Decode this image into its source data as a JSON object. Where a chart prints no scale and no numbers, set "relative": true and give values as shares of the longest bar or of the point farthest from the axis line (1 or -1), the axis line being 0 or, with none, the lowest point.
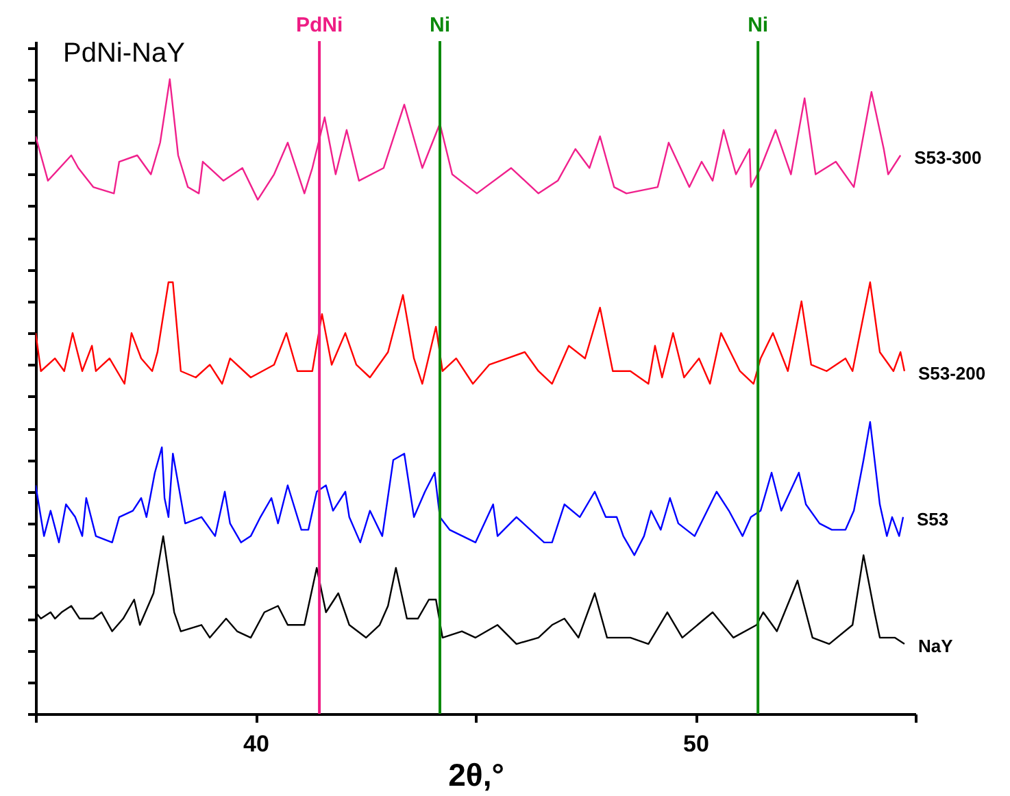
{
  "chart_data": {
    "type": "line",
    "title": "PdNi-NaY",
    "xlabel": "2θ,°",
    "relative": true,
    "legend": false,
    "grid": false,
    "xlim": [
      35,
      55
    ],
    "xticks": [
      {
        "value": 35,
        "label": null
      },
      40,
      {
        "value": 45,
        "label": null
      },
      50,
      {
        "value": 55,
        "label": null
      }
    ],
    "ref_lines": [
      {
        "axis": "x",
        "value": 41.45,
        "label": "PdNi",
        "color": "#ee1c84"
      },
      {
        "axis": "x",
        "value": 44.19,
        "label": "Ni",
        "color": "#0c8a0c"
      },
      {
        "axis": "x",
        "value": 51.42,
        "label": "Ni",
        "color": "#0c8a0c"
      }
    ],
    "series": [
      {
        "name": "S53-300",
        "color": "#f0208c",
        "x": [
          35.0,
          35.28,
          35.81,
          35.97,
          36.31,
          36.78,
          36.9,
          37.31,
          37.62,
          37.83,
          38.05,
          38.24,
          38.46,
          38.71,
          38.8,
          39.27,
          39.7,
          40.05,
          40.42,
          40.73,
          41.11,
          41.29,
          41.57,
          41.82,
          42.07,
          42.35,
          42.91,
          43.38,
          43.79,
          44.19,
          44.47,
          45.03,
          45.81,
          46.43,
          46.87,
          47.27,
          47.59,
          47.83,
          48.15,
          48.43,
          49.14,
          49.39,
          49.86,
          50.14,
          50.39,
          50.64,
          50.92,
          51.23,
          51.26,
          51.48,
          51.82,
          52.17,
          52.48,
          52.73,
          53.19,
          53.6,
          54.0,
          54.28,
          54.38,
          54.66
        ],
        "values": [
          0.91,
          0.84,
          0.88,
          0.86,
          0.83,
          0.82,
          0.87,
          0.88,
          0.85,
          0.9,
          1.0,
          0.88,
          0.83,
          0.82,
          0.87,
          0.84,
          0.86,
          0.81,
          0.85,
          0.9,
          0.82,
          0.86,
          0.94,
          0.85,
          0.92,
          0.84,
          0.86,
          0.96,
          0.86,
          0.93,
          0.85,
          0.82,
          0.86,
          0.82,
          0.84,
          0.89,
          0.86,
          0.91,
          0.83,
          0.82,
          0.83,
          0.9,
          0.83,
          0.87,
          0.84,
          0.92,
          0.85,
          0.89,
          0.83,
          0.86,
          0.92,
          0.85,
          0.97,
          0.85,
          0.87,
          0.83,
          0.98,
          0.89,
          0.85,
          0.88
        ]
      },
      {
        "name": "S53-200",
        "color": "#ff0000",
        "x": [
          35.0,
          35.12,
          35.44,
          35.65,
          35.84,
          36.06,
          36.28,
          36.37,
          36.68,
          37.02,
          37.18,
          37.4,
          37.65,
          37.77,
          38.02,
          38.12,
          38.3,
          38.64,
          38.96,
          39.24,
          39.42,
          39.89,
          40.42,
          40.7,
          40.95,
          41.29,
          41.51,
          41.73,
          42.04,
          42.29,
          42.6,
          43.01,
          43.35,
          43.6,
          43.79,
          44.1,
          44.25,
          44.56,
          44.94,
          45.31,
          45.72,
          46.12,
          46.43,
          46.74,
          47.12,
          47.49,
          47.83,
          48.12,
          48.52,
          48.93,
          49.08,
          49.24,
          49.49,
          49.74,
          50.08,
          50.33,
          50.58,
          51.01,
          51.32,
          51.48,
          51.76,
          52.1,
          52.41,
          52.63,
          52.98,
          53.41,
          53.57,
          53.97,
          54.19,
          54.5,
          54.66,
          54.75
        ],
        "values": [
          0.6,
          0.54,
          0.56,
          0.54,
          0.6,
          0.54,
          0.58,
          0.54,
          0.56,
          0.52,
          0.6,
          0.56,
          0.54,
          0.57,
          0.68,
          0.68,
          0.54,
          0.53,
          0.55,
          0.52,
          0.56,
          0.53,
          0.55,
          0.6,
          0.54,
          0.54,
          0.63,
          0.55,
          0.6,
          0.55,
          0.53,
          0.57,
          0.66,
          0.56,
          0.52,
          0.61,
          0.54,
          0.56,
          0.52,
          0.55,
          0.56,
          0.57,
          0.54,
          0.52,
          0.58,
          0.56,
          0.64,
          0.54,
          0.54,
          0.52,
          0.58,
          0.53,
          0.6,
          0.53,
          0.56,
          0.52,
          0.6,
          0.54,
          0.52,
          0.56,
          0.6,
          0.54,
          0.65,
          0.55,
          0.54,
          0.56,
          0.54,
          0.68,
          0.57,
          0.54,
          0.57,
          0.54
        ]
      },
      {
        "name": "S53",
        "color": "#0000ff",
        "x": [
          35.0,
          35.19,
          35.34,
          35.53,
          35.69,
          35.9,
          36.06,
          36.15,
          36.37,
          36.74,
          36.9,
          37.21,
          37.4,
          37.52,
          37.71,
          37.87,
          37.93,
          38.02,
          38.12,
          38.4,
          38.77,
          39.08,
          39.3,
          39.42,
          39.67,
          39.89,
          40.11,
          40.36,
          40.51,
          40.73,
          41.04,
          41.2,
          41.39,
          41.6,
          41.76,
          42.04,
          42.13,
          42.38,
          42.6,
          42.88,
          43.13,
          43.38,
          43.6,
          43.85,
          44.07,
          44.19,
          44.41,
          45.0,
          45.4,
          45.5,
          45.93,
          46.56,
          46.74,
          47.02,
          47.37,
          47.71,
          47.96,
          48.21,
          48.36,
          48.61,
          48.83,
          48.99,
          49.21,
          49.42,
          49.61,
          49.98,
          50.48,
          50.76,
          51.07,
          51.26,
          51.48,
          51.73,
          51.95,
          52.35,
          52.51,
          52.82,
          53.1,
          53.41,
          53.6,
          53.82,
          53.97,
          54.19,
          54.35,
          54.47,
          54.63,
          54.72
        ],
        "values": [
          0.36,
          0.28,
          0.32,
          0.27,
          0.33,
          0.31,
          0.28,
          0.34,
          0.28,
          0.27,
          0.31,
          0.32,
          0.34,
          0.31,
          0.38,
          0.42,
          0.34,
          0.31,
          0.41,
          0.3,
          0.31,
          0.28,
          0.35,
          0.3,
          0.27,
          0.28,
          0.31,
          0.34,
          0.3,
          0.36,
          0.29,
          0.29,
          0.35,
          0.36,
          0.32,
          0.35,
          0.31,
          0.27,
          0.32,
          0.28,
          0.4,
          0.41,
          0.31,
          0.35,
          0.38,
          0.31,
          0.29,
          0.27,
          0.33,
          0.28,
          0.31,
          0.27,
          0.27,
          0.33,
          0.31,
          0.35,
          0.31,
          0.31,
          0.28,
          0.25,
          0.28,
          0.32,
          0.29,
          0.34,
          0.3,
          0.28,
          0.35,
          0.32,
          0.28,
          0.31,
          0.32,
          0.38,
          0.32,
          0.38,
          0.33,
          0.3,
          0.29,
          0.29,
          0.32,
          0.4,
          0.46,
          0.33,
          0.28,
          0.31,
          0.28,
          0.31
        ]
      },
      {
        "name": "NaY",
        "color": "#000000",
        "x": [
          35.0,
          35.12,
          35.34,
          35.44,
          35.59,
          35.81,
          36.0,
          36.31,
          36.5,
          36.74,
          36.99,
          37.24,
          37.37,
          37.68,
          37.9,
          38.15,
          38.3,
          38.77,
          38.96,
          39.33,
          39.58,
          39.89,
          40.2,
          40.51,
          40.73,
          41.11,
          41.39,
          41.6,
          41.88,
          42.13,
          42.51,
          42.82,
          43.01,
          43.19,
          43.44,
          43.69,
          43.94,
          44.1,
          44.25,
          44.69,
          45.0,
          45.5,
          45.93,
          46.43,
          46.74,
          47.02,
          47.34,
          47.71,
          47.99,
          48.52,
          48.93,
          49.36,
          49.7,
          50.39,
          50.86,
          51.39,
          51.54,
          51.85,
          52.32,
          52.66,
          53.04,
          53.57,
          53.82,
          54.07,
          54.19,
          54.53,
          54.75
        ],
        "values": [
          0.16,
          0.15,
          0.16,
          0.15,
          0.16,
          0.17,
          0.15,
          0.15,
          0.16,
          0.13,
          0.15,
          0.18,
          0.14,
          0.19,
          0.28,
          0.16,
          0.13,
          0.14,
          0.12,
          0.15,
          0.13,
          0.12,
          0.16,
          0.17,
          0.14,
          0.14,
          0.23,
          0.16,
          0.19,
          0.14,
          0.12,
          0.14,
          0.17,
          0.23,
          0.15,
          0.15,
          0.18,
          0.18,
          0.12,
          0.13,
          0.12,
          0.14,
          0.11,
          0.12,
          0.14,
          0.15,
          0.12,
          0.19,
          0.12,
          0.12,
          0.11,
          0.16,
          0.12,
          0.16,
          0.12,
          0.14,
          0.16,
          0.13,
          0.21,
          0.12,
          0.11,
          0.14,
          0.25,
          0.16,
          0.12,
          0.12,
          0.11
        ]
      }
    ]
  }
}
